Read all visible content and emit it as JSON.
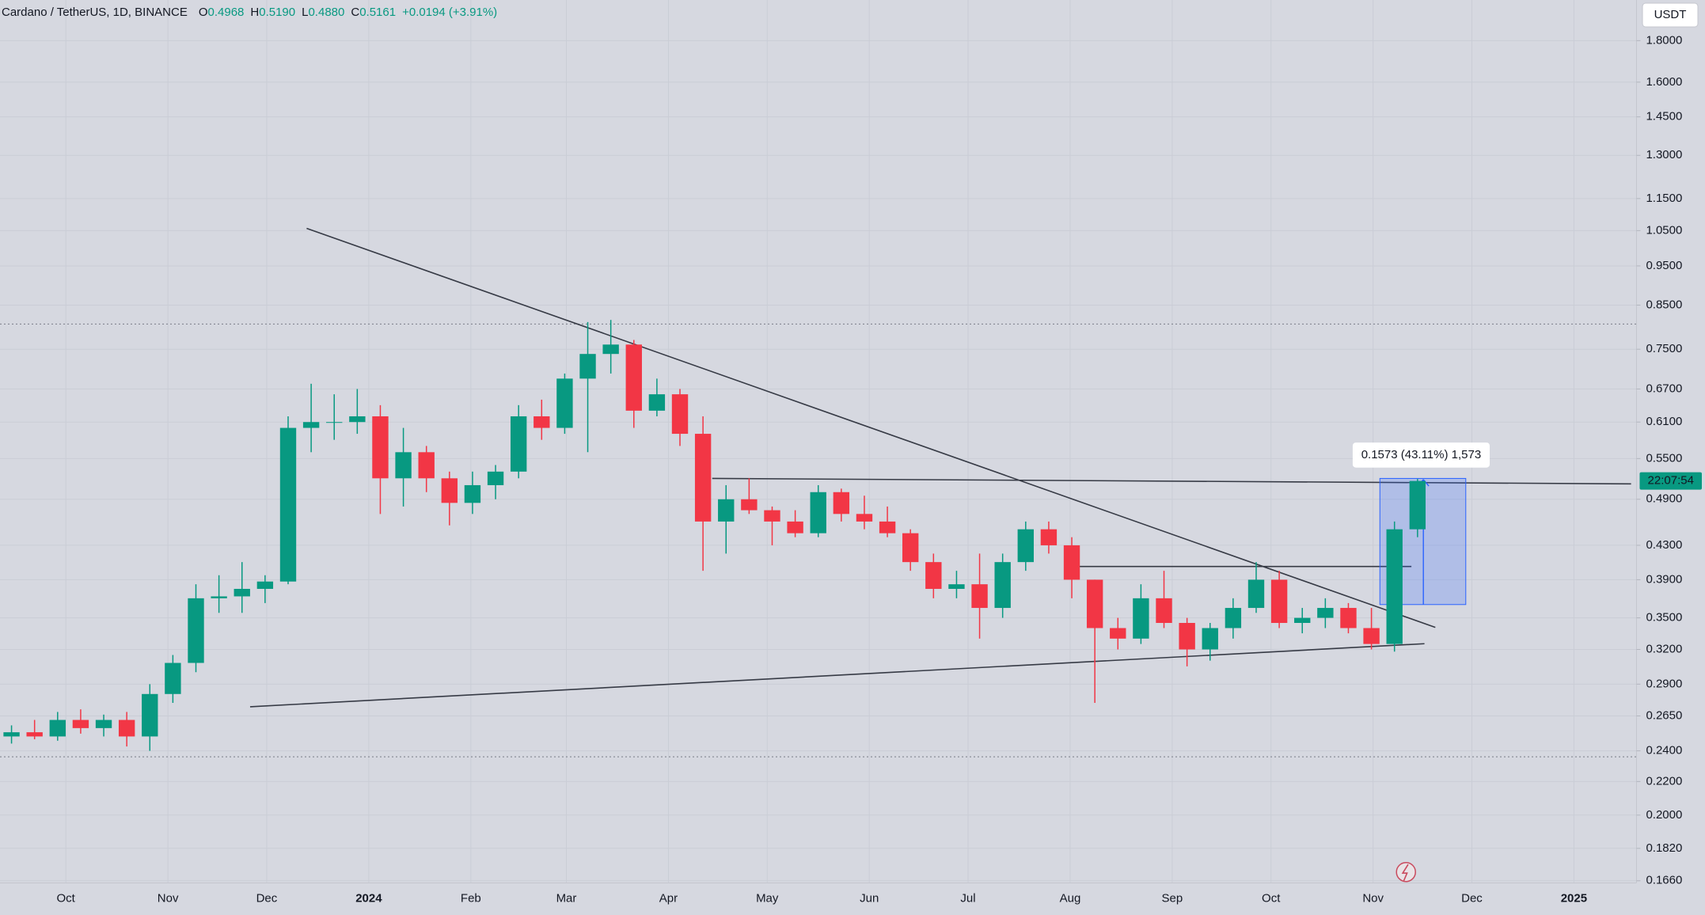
{
  "chart_data": {
    "type": "candlestick",
    "title": "Cardano / TetherUS, 1D, BINANCE",
    "legend_ohlc": [
      {
        "label": "O",
        "value": "0.4968"
      },
      {
        "label": "H",
        "value": "0.5190"
      },
      {
        "label": "L",
        "value": "0.4880"
      },
      {
        "label": "C",
        "value": "0.5161"
      }
    ],
    "legend_change": "+0.0194 (+3.91%)",
    "currency_button": "USDT",
    "price_countdown": "22:07:54",
    "measure_label": "0.1573 (43.11%) 1,573",
    "log_scale": true,
    "grid": true,
    "up_color": "#089981",
    "down_color": "#f23645",
    "x": [
      "2023-09-11",
      "2023-09-18",
      "2023-09-25",
      "2023-10-02",
      "2023-10-09",
      "2023-10-16",
      "2023-10-23",
      "2023-10-30",
      "2023-11-06",
      "2023-11-13",
      "2023-11-20",
      "2023-11-27",
      "2023-12-04",
      "2023-12-11",
      "2023-12-18",
      "2023-12-25",
      "2024-01-01",
      "2024-01-08",
      "2024-01-15",
      "2024-01-22",
      "2024-01-29",
      "2024-02-05",
      "2024-02-12",
      "2024-02-19",
      "2024-02-26",
      "2024-03-04",
      "2024-03-11",
      "2024-03-18",
      "2024-03-25",
      "2024-04-01",
      "2024-04-08",
      "2024-04-15",
      "2024-04-22",
      "2024-04-29",
      "2024-05-06",
      "2024-05-13",
      "2024-05-20",
      "2024-05-27",
      "2024-06-03",
      "2024-06-10",
      "2024-06-17",
      "2024-06-24",
      "2024-07-01",
      "2024-07-08",
      "2024-07-15",
      "2024-07-22",
      "2024-07-29",
      "2024-08-05",
      "2024-08-12",
      "2024-08-19",
      "2024-08-26",
      "2024-09-02",
      "2024-09-09",
      "2024-09-16",
      "2024-09-23",
      "2024-09-30",
      "2024-10-07",
      "2024-10-14",
      "2024-10-21",
      "2024-10-28",
      "2024-11-04",
      "2024-11-11"
    ],
    "open": [
      0.25,
      0.253,
      0.25,
      0.262,
      0.256,
      0.262,
      0.25,
      0.282,
      0.308,
      0.37,
      0.372,
      0.38,
      0.388,
      0.6,
      0.61,
      0.61,
      0.62,
      0.52,
      0.56,
      0.52,
      0.485,
      0.51,
      0.53,
      0.62,
      0.6,
      0.69,
      0.74,
      0.76,
      0.63,
      0.66,
      0.59,
      0.46,
      0.49,
      0.475,
      0.46,
      0.445,
      0.5,
      0.47,
      0.46,
      0.445,
      0.41,
      0.38,
      0.385,
      0.36,
      0.41,
      0.45,
      0.43,
      0.39,
      0.34,
      0.33,
      0.37,
      0.345,
      0.32,
      0.34,
      0.36,
      0.39,
      0.345,
      0.35,
      0.36,
      0.34,
      0.325,
      0.45
    ],
    "high": [
      0.258,
      0.262,
      0.268,
      0.27,
      0.266,
      0.268,
      0.29,
      0.315,
      0.385,
      0.395,
      0.41,
      0.395,
      0.62,
      0.68,
      0.66,
      0.67,
      0.64,
      0.6,
      0.57,
      0.53,
      0.53,
      0.54,
      0.64,
      0.65,
      0.7,
      0.81,
      0.815,
      0.77,
      0.69,
      0.67,
      0.62,
      0.51,
      0.52,
      0.48,
      0.475,
      0.51,
      0.505,
      0.495,
      0.48,
      0.45,
      0.42,
      0.4,
      0.42,
      0.42,
      0.46,
      0.46,
      0.44,
      0.39,
      0.35,
      0.385,
      0.4,
      0.35,
      0.345,
      0.37,
      0.41,
      0.4,
      0.36,
      0.37,
      0.365,
      0.36,
      0.46,
      0.519
    ],
    "low": [
      0.245,
      0.248,
      0.247,
      0.252,
      0.25,
      0.243,
      0.24,
      0.275,
      0.3,
      0.355,
      0.355,
      0.365,
      0.385,
      0.56,
      0.58,
      0.59,
      0.47,
      0.48,
      0.5,
      0.455,
      0.47,
      0.49,
      0.52,
      0.58,
      0.59,
      0.56,
      0.7,
      0.6,
      0.62,
      0.57,
      0.4,
      0.42,
      0.47,
      0.43,
      0.44,
      0.44,
      0.46,
      0.45,
      0.44,
      0.4,
      0.37,
      0.37,
      0.33,
      0.35,
      0.4,
      0.42,
      0.37,
      0.275,
      0.32,
      0.325,
      0.34,
      0.305,
      0.31,
      0.33,
      0.355,
      0.34,
      0.335,
      0.34,
      0.335,
      0.32,
      0.318,
      0.44
    ],
    "close": [
      0.253,
      0.25,
      0.262,
      0.256,
      0.262,
      0.25,
      0.282,
      0.308,
      0.37,
      0.372,
      0.38,
      0.388,
      0.6,
      0.61,
      0.61,
      0.62,
      0.52,
      0.56,
      0.52,
      0.485,
      0.51,
      0.53,
      0.62,
      0.6,
      0.69,
      0.74,
      0.76,
      0.63,
      0.66,
      0.59,
      0.46,
      0.49,
      0.475,
      0.46,
      0.445,
      0.5,
      0.47,
      0.46,
      0.445,
      0.41,
      0.38,
      0.385,
      0.36,
      0.41,
      0.45,
      0.43,
      0.39,
      0.34,
      0.33,
      0.37,
      0.345,
      0.32,
      0.34,
      0.36,
      0.39,
      0.345,
      0.35,
      0.36,
      0.34,
      0.325,
      0.45,
      0.5161
    ],
    "xlim": [
      "2023-09-11",
      "2025-01-20"
    ],
    "xticks": [
      {
        "value": "2023-10-01",
        "label": "Oct"
      },
      {
        "value": "2023-11-01",
        "label": "Nov"
      },
      {
        "value": "2023-12-01",
        "label": "Dec"
      },
      {
        "value": "2024-01-01",
        "label": "2024"
      },
      {
        "value": "2024-02-01",
        "label": "Feb"
      },
      {
        "value": "2024-03-01",
        "label": "Mar"
      },
      {
        "value": "2024-04-01",
        "label": "Apr"
      },
      {
        "value": "2024-05-01",
        "label": "May"
      },
      {
        "value": "2024-06-01",
        "label": "Jun"
      },
      {
        "value": "2024-07-01",
        "label": "Jul"
      },
      {
        "value": "2024-08-01",
        "label": "Aug"
      },
      {
        "value": "2024-09-01",
        "label": "Sep"
      },
      {
        "value": "2024-10-01",
        "label": "Oct"
      },
      {
        "value": "2024-11-01",
        "label": "Nov"
      },
      {
        "value": "2024-12-01",
        "label": "Dec"
      },
      {
        "value": "2025-01-01",
        "label": "2025"
      }
    ],
    "ylim": [
      0.165,
      2.02
    ],
    "yticks": [
      {
        "value": 1.8,
        "label": "1.8000"
      },
      {
        "value": 1.6,
        "label": "1.6000"
      },
      {
        "value": 1.45,
        "label": "1.4500"
      },
      {
        "value": 1.3,
        "label": "1.3000"
      },
      {
        "value": 1.15,
        "label": "1.1500"
      },
      {
        "value": 1.05,
        "label": "1.0500"
      },
      {
        "value": 0.95,
        "label": "0.9500"
      },
      {
        "value": 0.85,
        "label": "0.8500"
      },
      {
        "value": 0.75,
        "label": "0.7500"
      },
      {
        "value": 0.67,
        "label": "0.6700"
      },
      {
        "value": 0.61,
        "label": "0.6100"
      },
      {
        "value": 0.55,
        "label": "0.5500"
      },
      {
        "value": 0.49,
        "label": "0.4900"
      },
      {
        "value": 0.43,
        "label": "0.4300"
      },
      {
        "value": 0.39,
        "label": "0.3900"
      },
      {
        "value": 0.35,
        "label": "0.3500"
      },
      {
        "value": 0.32,
        "label": "0.3200"
      },
      {
        "value": 0.29,
        "label": "0.2900"
      },
      {
        "value": 0.265,
        "label": "0.2650"
      },
      {
        "value": 0.24,
        "label": "0.2400"
      },
      {
        "value": 0.22,
        "label": "0.2200"
      },
      {
        "value": 0.2,
        "label": "0.2000"
      },
      {
        "value": 0.182,
        "label": "0.1820"
      },
      {
        "value": 0.166,
        "label": "0.1660"
      }
    ]
  }
}
